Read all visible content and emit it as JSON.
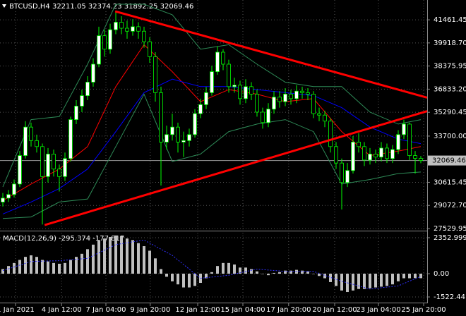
{
  "chart_data": [
    {
      "type": "candlestick",
      "title": "BTCUSD,H4  32211.05 32374.23 31892.25 32069.46",
      "xlim": [
        -0.5,
        75.125
      ],
      "ylim": [
        27435,
        42784
      ],
      "yticks": [
        {
          "value": 41461.45,
          "label": "41461.45"
        },
        {
          "value": 39918.7,
          "label": "39918.70"
        },
        {
          "value": 38375.95,
          "label": "38375.95"
        },
        {
          "value": 36833.2,
          "label": "36833.20"
        },
        {
          "value": 35290.45,
          "label": "35290.45"
        },
        {
          "value": 33700,
          "label": "33700.00"
        },
        {
          "value": 30615.45,
          "label": "30615.45"
        },
        {
          "value": 29072.7,
          "label": "29072.70"
        },
        {
          "value": 27529.95,
          "label": "27529.95"
        }
      ],
      "bid": 32069.46,
      "grid": true,
      "up_color": "#ffffff",
      "down_color": "#000000",
      "wick_color": "#00ff00",
      "open": [
        29300,
        29560,
        29800,
        30500,
        32400,
        34300,
        33400,
        33000,
        31000,
        32500,
        31500,
        31000,
        32200,
        34800,
        35700,
        36400,
        37300,
        38500,
        40400,
        39500,
        40800,
        41300,
        40900,
        40700,
        41000,
        40700,
        40000,
        39000,
        36600,
        33300,
        33800,
        34300,
        33300,
        33400,
        33800,
        35200,
        35800,
        36600,
        38000,
        39300,
        38500,
        37000,
        37100,
        36200,
        37000,
        36500,
        35300,
        34600,
        35500,
        36300,
        36000,
        36500,
        36200,
        36700,
        36600,
        36500,
        35200,
        35100,
        34700,
        33000,
        31900,
        30600,
        31400,
        33300,
        33000,
        32100,
        32500,
        32300,
        32900,
        32200,
        32800,
        33800,
        34500,
        32400,
        32211.05
      ],
      "high": [
        29900,
        30100,
        30800,
        32700,
        34700,
        34600,
        33800,
        33200,
        32900,
        32800,
        31800,
        32600,
        35000,
        36100,
        36800,
        37700,
        38900,
        41000,
        40800,
        41200,
        42000,
        41700,
        41400,
        41500,
        41300,
        41000,
        40300,
        39300,
        37000,
        34400,
        35200,
        34600,
        34000,
        34200,
        35500,
        36200,
        37000,
        38400,
        39700,
        39500,
        38800,
        37600,
        37400,
        37500,
        37300,
        36800,
        35600,
        35900,
        36700,
        36700,
        36900,
        36800,
        37100,
        37000,
        36900,
        36700,
        35600,
        35400,
        34900,
        33300,
        32200,
        31900,
        33700,
        33900,
        33300,
        32900,
        32800,
        33300,
        33200,
        33100,
        34100,
        34800,
        34600,
        32700,
        32374.23
      ],
      "low": [
        29000,
        29300,
        29600,
        30300,
        32200,
        33000,
        32600,
        27800,
        30600,
        31000,
        30000,
        30700,
        32000,
        34500,
        35300,
        36100,
        37000,
        38300,
        39000,
        39200,
        40500,
        40500,
        40200,
        40400,
        40200,
        39600,
        38600,
        36000,
        30400,
        32800,
        33400,
        32600,
        32300,
        33000,
        33600,
        34900,
        35500,
        36400,
        37800,
        38100,
        36600,
        36600,
        35800,
        35900,
        36100,
        35000,
        34200,
        34300,
        35200,
        35600,
        35700,
        35800,
        35900,
        36200,
        36100,
        34900,
        34700,
        34300,
        32600,
        31500,
        28800,
        30300,
        31200,
        32600,
        31700,
        31800,
        31900,
        32000,
        31900,
        31900,
        32500,
        33500,
        32100,
        31200,
        31892.25
      ],
      "close": [
        29560,
        29800,
        30500,
        32400,
        34300,
        33400,
        33000,
        31000,
        32500,
        31500,
        31000,
        32200,
        34800,
        35700,
        36400,
        37300,
        38500,
        40400,
        39500,
        40800,
        41300,
        40900,
        40700,
        41000,
        40700,
        40000,
        39000,
        36600,
        33300,
        33800,
        34300,
        33300,
        33400,
        33800,
        35200,
        35800,
        36600,
        38000,
        39300,
        38500,
        37000,
        37100,
        36200,
        37000,
        36500,
        35300,
        34600,
        35500,
        36300,
        36000,
        36500,
        36200,
        36700,
        36600,
        36500,
        35200,
        35100,
        34700,
        33000,
        31900,
        30600,
        31400,
        33300,
        33000,
        32100,
        32500,
        32300,
        32900,
        32200,
        32800,
        33800,
        34500,
        32400,
        32211.05,
        32069.46
      ],
      "lines": [
        {
          "color": "#ff0000",
          "x": [
            0,
            5,
            10,
            15,
            20,
            25,
            30,
            35,
            40,
            45,
            50,
            55,
            60,
            65,
            70,
            74
          ],
          "values": [
            29400,
            30500,
            31500,
            33000,
            37000,
            39800,
            38000,
            36000,
            36800,
            36500,
            36000,
            36200,
            34000,
            32400,
            32700,
            33000
          ]
        },
        {
          "color": "#0000ff",
          "x": [
            0,
            5,
            10,
            15,
            20,
            25,
            30,
            35,
            40,
            45,
            50,
            55,
            60,
            65,
            70,
            74
          ],
          "values": [
            28500,
            29300,
            30200,
            31500,
            34000,
            36600,
            37500,
            37000,
            37000,
            36800,
            36600,
            36400,
            35600,
            34300,
            33500,
            33200
          ]
        },
        {
          "color": "#2e8b57",
          "x": [
            0,
            5,
            10,
            15,
            20,
            25,
            30,
            35,
            40,
            45,
            50,
            55,
            60,
            65,
            70,
            74
          ],
          "values": [
            30300,
            34800,
            35000,
            38500,
            42500,
            42500,
            41800,
            39500,
            39800,
            38500,
            37300,
            37000,
            37000,
            35300,
            34500,
            34800
          ]
        },
        {
          "color": "#2e8b57",
          "x": [
            0,
            5,
            10,
            15,
            20,
            25,
            30,
            35,
            40,
            45,
            50,
            55,
            60,
            65,
            70,
            74
          ],
          "values": [
            28200,
            28300,
            29300,
            29500,
            33000,
            36500,
            32000,
            32500,
            34000,
            34500,
            34800,
            34000,
            30500,
            30800,
            31200,
            31300
          ]
        }
      ],
      "trendlines": [
        {
          "color": "#ff0000",
          "x": [
            19.9,
            75.125
          ],
          "values": [
            42028,
            36266
          ]
        },
        {
          "color": "#ff0000",
          "x": [
            7.4,
            75.125
          ],
          "values": [
            27765,
            35369
          ]
        }
      ]
    },
    {
      "type": "macd",
      "title": "MACD(12,26,9) -295.374 -177.817",
      "xlim": [
        -0.5,
        75.125
      ],
      "ylim": [
        -1845,
        2676
      ],
      "yticks": [
        2352.999,
        {
          "value": 0,
          "label": "0.00"
        },
        -1522.441
      ],
      "xticks": [
        {
          "value": 2.25,
          "label": "1 Jan 2021"
        },
        {
          "value": 10.4,
          "label": "4 Jan 12:00"
        },
        {
          "value": 18.25,
          "label": "7 Jan 04:00"
        },
        {
          "value": 26.1,
          "label": "9 Jan 20:00"
        },
        {
          "value": 34.5,
          "label": "12 Jan 12:00"
        },
        {
          "value": 42.5,
          "label": "15 Jan 04:00"
        },
        {
          "value": 50.6,
          "label": "17 Jan 20:00"
        },
        {
          "value": 58.75,
          "label": "20 Jan 12:00"
        },
        {
          "value": 66.5,
          "label": "23 Jan 04:00"
        },
        {
          "value": 74.5,
          "label": "25 Jan 20:00"
        }
      ],
      "hist_color": "#c0c0c0",
      "values": [
        300,
        500,
        700,
        900,
        1100,
        1200,
        1100,
        900,
        800,
        700,
        650,
        700,
        900,
        1100,
        1300,
        1600,
        1900,
        2200,
        2300,
        2400,
        2500,
        2450,
        2300,
        2200,
        2000,
        1800,
        1500,
        1000,
        300,
        -200,
        -500,
        -700,
        -900,
        -900,
        -800,
        -600,
        -300,
        100,
        500,
        700,
        700,
        600,
        400,
        400,
        300,
        150,
        0,
        -100,
        50,
        100,
        200,
        200,
        250,
        200,
        150,
        0,
        -150,
        -300,
        -550,
        -800,
        -1100,
        -1200,
        -1100,
        -1000,
        -1000,
        -950,
        -900,
        -850,
        -800,
        -700,
        -500,
        -300,
        -300,
        -290,
        -295.374
      ],
      "signal": {
        "color": "#3030ff",
        "x": [
          0,
          5,
          10,
          15,
          20,
          25,
          30,
          35,
          40,
          45,
          50,
          55,
          60,
          65,
          70,
          74
        ],
        "values": [
          200,
          800,
          850,
          1000,
          1900,
          2200,
          1200,
          -300,
          -100,
          300,
          150,
          150,
          -500,
          -1000,
          -800,
          -177.817
        ]
      }
    }
  ]
}
